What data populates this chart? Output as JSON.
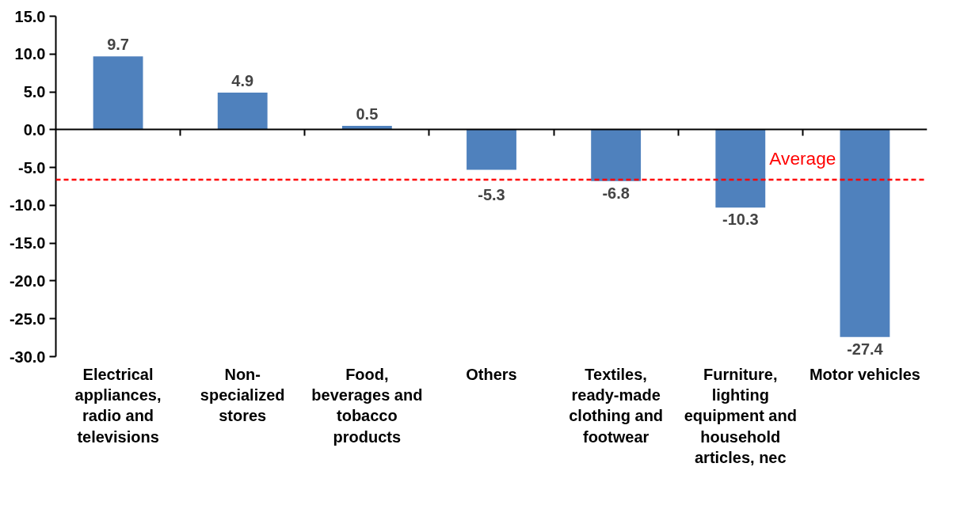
{
  "chart_data": {
    "type": "bar",
    "categories": [
      "Electrical appliances, radio and televisions",
      "Non-specialized stores",
      "Food, beverages and tobacco products",
      "Others",
      "Textiles, ready-made clothing and footwear",
      "Furniture, lighting equipment and household articles, nec",
      "Motor vehicles"
    ],
    "values": [
      9.7,
      4.9,
      0.5,
      -5.3,
      -6.8,
      -10.3,
      -27.4
    ],
    "color": "#4f81bd",
    "ylim": [
      -30,
      15
    ],
    "yticks": [
      {
        "value": -30,
        "label": "-30.0"
      },
      {
        "value": -25,
        "label": "-25.0"
      },
      {
        "value": -20,
        "label": "-20.0"
      },
      {
        "value": -15,
        "label": "-15.0"
      },
      {
        "value": -10,
        "label": "-10.0"
      },
      {
        "value": -5,
        "label": "-5.0"
      },
      {
        "value": 0,
        "label": "0.0"
      },
      {
        "value": 5,
        "label": "5.0"
      },
      {
        "value": 10,
        "label": "10.0"
      },
      {
        "value": 15,
        "label": "15.0"
      }
    ],
    "data_labels": true,
    "ref_lines": [
      {
        "axis": "y",
        "value": -6.6,
        "label": "Average",
        "color": "#ff0000",
        "line_style": "dashed"
      }
    ]
  }
}
